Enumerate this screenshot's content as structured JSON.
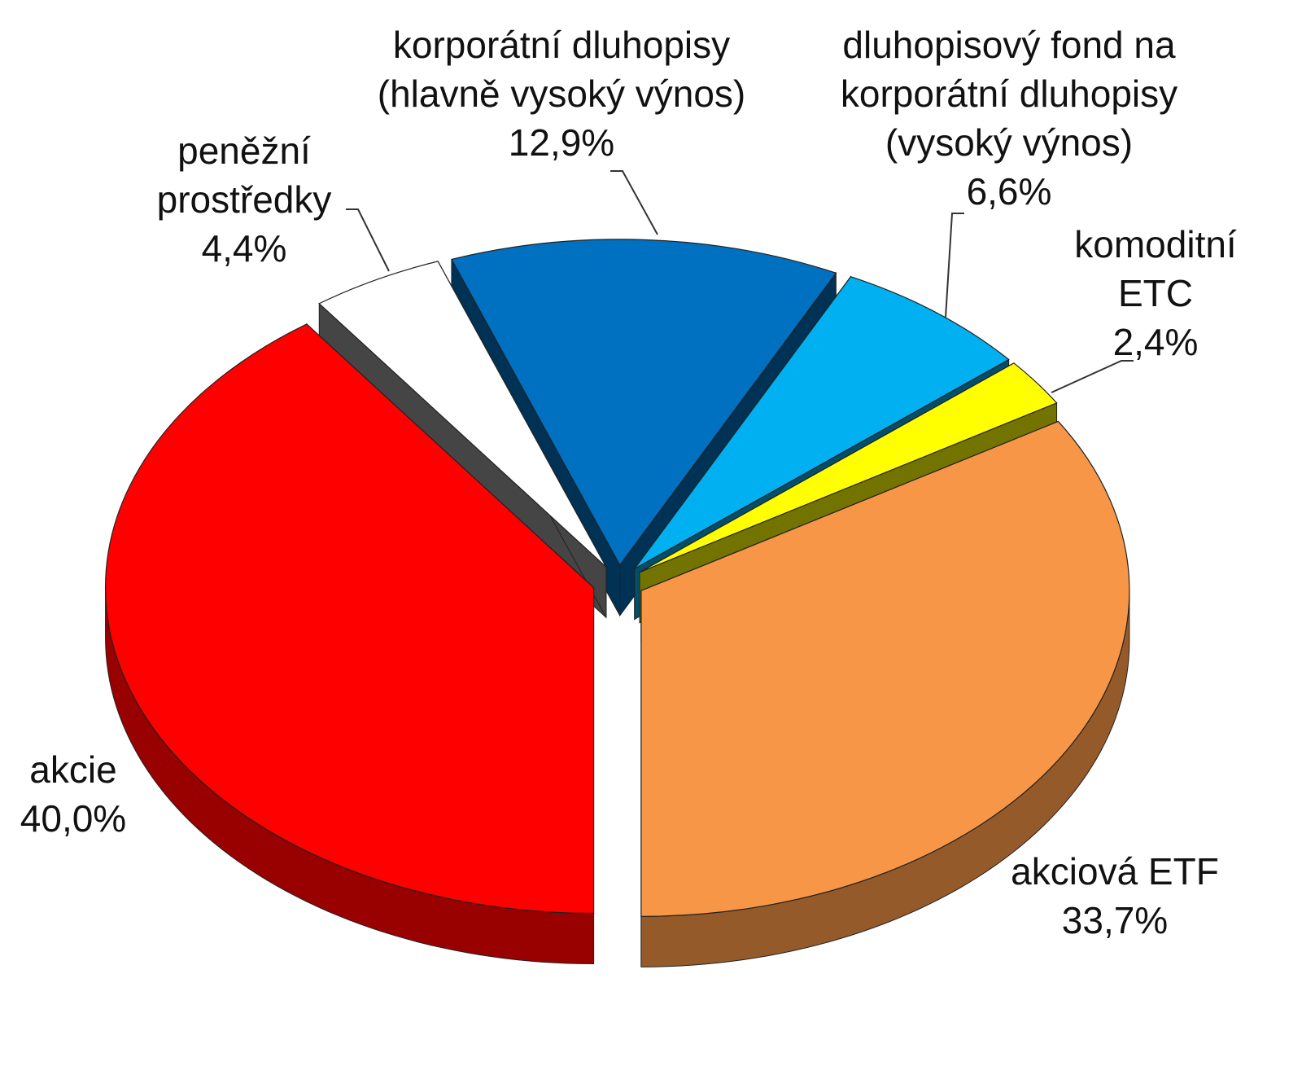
{
  "chart_data": {
    "type": "pie",
    "categories": [
      "akcie",
      "peněžní\nprostředky",
      "korporátní dluhopisy\n(hlavně vysoký výnos)",
      "dluhopisový fond na\nkorporátní dluhopisy\n(vysoký výnos)",
      "komoditní\nETC",
      "akciová ETF"
    ],
    "values": [
      40.0,
      4.4,
      12.9,
      6.6,
      2.4,
      33.7
    ],
    "value_labels": [
      "40,0%",
      "4,4%",
      "12,9%",
      "6,6%",
      "2,4%",
      "33,7%"
    ],
    "colors": [
      "#ff0000",
      "#ffffff",
      "#0070c0",
      "#00b0f0",
      "#ffff00",
      "#f79646"
    ]
  }
}
